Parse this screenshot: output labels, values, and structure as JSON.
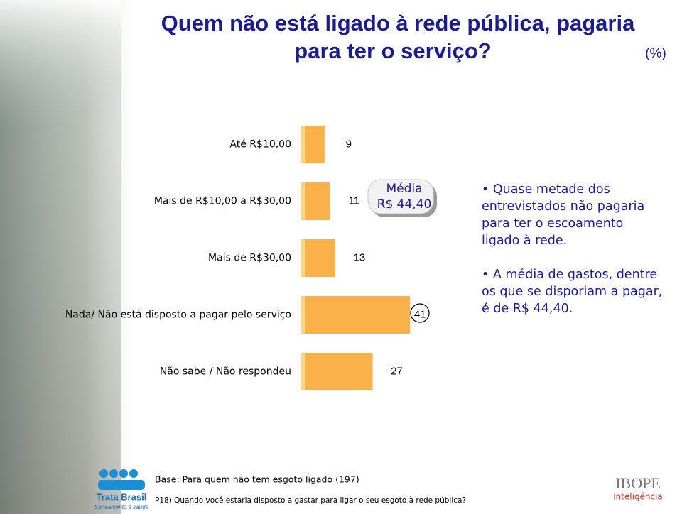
{
  "chart_data": {
    "type": "hbar",
    "title": [
      "Quem não está ligado à rede pública, pagaria",
      "para ter o serviço?"
    ],
    "unit": "(%)",
    "categories": [
      "Até R$10,00",
      "Mais de R$10,00 a R$30,00",
      "Mais de R$30,00",
      "Nada/ Não está disposto a pagar pelo serviço",
      "Não sabe / Não respondeu"
    ],
    "values": [
      9,
      11,
      13,
      41,
      27
    ],
    "color": "#fab149",
    "annotation": [
      "Média",
      "R$ 44,40"
    ]
  },
  "bullets": [
    [
      "Quase metade dos",
      "entrevistados não pagaria",
      "para ter o escoamento",
      "ligado à rede."
    ],
    [
      "A média de gastos, dentre",
      "os que se disporiam a pagar,",
      "é de R$ 44,40."
    ]
  ],
  "footer": {
    "base": "Base: Para quem não tem esgoto ligado (197)",
    "question": "P18) Quando você estaria disposto a gastar para ligar o seu esgoto à rede pública?",
    "logo_left": [
      "Trata Brasil",
      "Saneamento é saúde"
    ],
    "logo_right": [
      "IBOPE",
      "inteligência"
    ]
  }
}
